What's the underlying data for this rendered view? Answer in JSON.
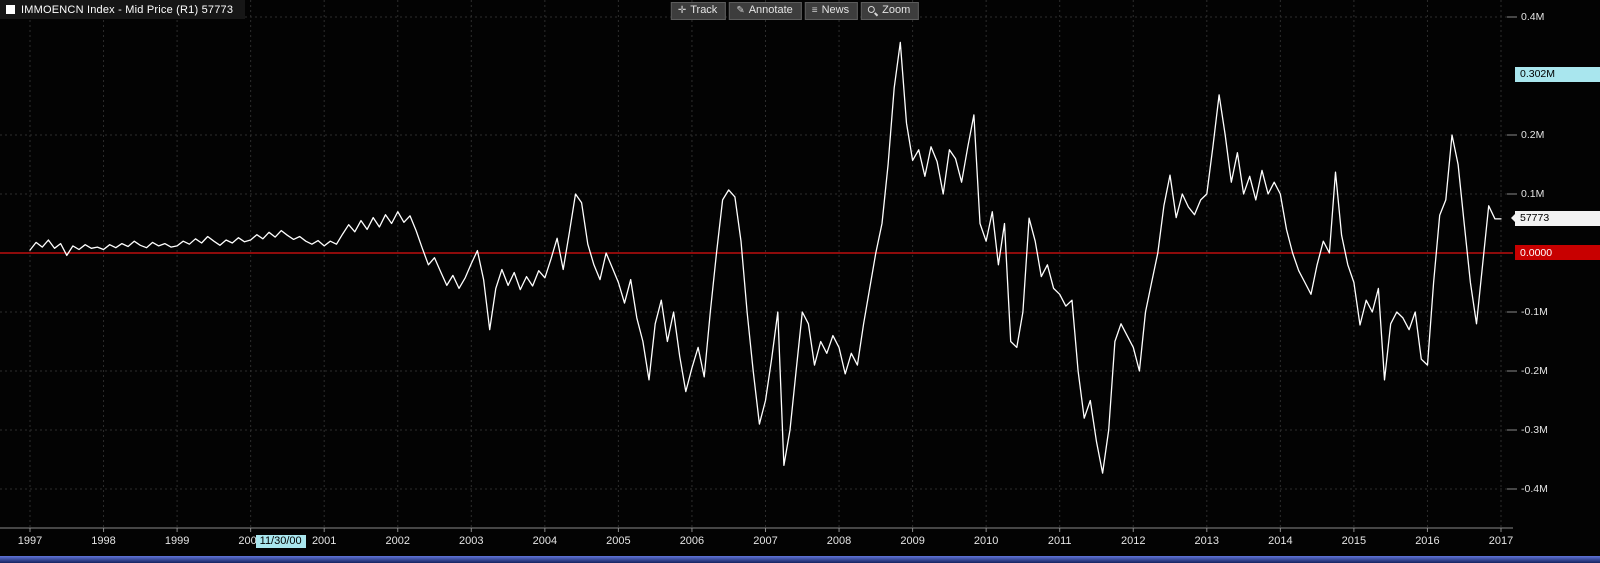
{
  "legend": {
    "text": "IMMOENCN Index - Mid Price (R1) 57773",
    "series_swatch_color": "#ffffff"
  },
  "toolbar": {
    "buttons": [
      {
        "name": "track",
        "label": "Track",
        "glyph": "✛"
      },
      {
        "name": "annotate",
        "label": "Annotate",
        "glyph": "✎"
      },
      {
        "name": "news",
        "label": "News",
        "glyph": "≡"
      },
      {
        "name": "zoom",
        "label": "Zoom",
        "glyph": ""
      }
    ]
  },
  "y_axis": {
    "labels": [
      {
        "text": "0.4M",
        "value": 0.4,
        "style": "plain"
      },
      {
        "text": "0.302M",
        "value": 0.302,
        "style": "cyan"
      },
      {
        "text": "0.2M",
        "value": 0.2,
        "style": "plain"
      },
      {
        "text": "0.1M",
        "value": 0.1,
        "style": "plain"
      },
      {
        "text": "57773",
        "value": 0.0578,
        "style": "white"
      },
      {
        "text": "0.0000",
        "value": 0.0,
        "style": "red"
      },
      {
        "text": "-0.1M",
        "value": -0.1,
        "style": "plain"
      },
      {
        "text": "-0.2M",
        "value": -0.2,
        "style": "plain"
      },
      {
        "text": "-0.3M",
        "value": -0.3,
        "style": "plain"
      },
      {
        "text": "-0.4M",
        "value": -0.4,
        "style": "plain"
      }
    ]
  },
  "x_axis": {
    "years": [
      "1997",
      "1998",
      "1999",
      "2000",
      "2001",
      "2002",
      "2003",
      "2004",
      "2005",
      "2006",
      "2007",
      "2008",
      "2009",
      "2010",
      "2011",
      "2012",
      "2013",
      "2014",
      "2015",
      "2016",
      "2017"
    ],
    "date_marker": {
      "text": "11/30/00",
      "year": 2000
    }
  },
  "colors": {
    "background": "#030303",
    "line": "#ffffff",
    "zero_line": "#e01010",
    "grid": "#2d2d2d",
    "axis": "#8a8a8a",
    "cyan_badge": "#a9e6ee",
    "white_badge": "#f2f2f2",
    "red_badge": "#c80000"
  },
  "chart_data": {
    "type": "line",
    "title": "IMMOENCN Index - Mid Price (R1)",
    "last_value_label": "57773",
    "last_value": 0.0578,
    "tracked_value_label": "0.302M",
    "x_start_year": 1997,
    "x_end_year": 2017,
    "points_per_year": 12,
    "ylim": [
      -0.45,
      0.42
    ],
    "y_unit": "M",
    "grid": true,
    "zero_reference_line": 0.0,
    "values": [
      0.005,
      0.018,
      0.01,
      0.022,
      0.008,
      0.016,
      -0.004,
      0.012,
      0.006,
      0.014,
      0.008,
      0.01,
      0.006,
      0.014,
      0.009,
      0.016,
      0.011,
      0.02,
      0.013,
      0.009,
      0.018,
      0.012,
      0.016,
      0.01,
      0.012,
      0.02,
      0.015,
      0.024,
      0.017,
      0.028,
      0.02,
      0.013,
      0.022,
      0.017,
      0.026,
      0.019,
      0.022,
      0.031,
      0.024,
      0.035,
      0.027,
      0.038,
      0.03,
      0.023,
      0.028,
      0.02,
      0.015,
      0.021,
      0.012,
      0.02,
      0.015,
      0.032,
      0.048,
      0.036,
      0.055,
      0.04,
      0.06,
      0.044,
      0.065,
      0.05,
      0.07,
      0.052,
      0.063,
      0.038,
      0.008,
      -0.02,
      -0.008,
      -0.032,
      -0.055,
      -0.038,
      -0.06,
      -0.042,
      -0.018,
      0.004,
      -0.045,
      -0.13,
      -0.06,
      -0.028,
      -0.055,
      -0.033,
      -0.062,
      -0.04,
      -0.056,
      -0.03,
      -0.042,
      -0.01,
      0.025,
      -0.028,
      0.035,
      0.1,
      0.085,
      0.015,
      -0.02,
      -0.045,
      0.0,
      -0.025,
      -0.05,
      -0.085,
      -0.045,
      -0.11,
      -0.15,
      -0.215,
      -0.12,
      -0.08,
      -0.15,
      -0.1,
      -0.175,
      -0.235,
      -0.195,
      -0.16,
      -0.21,
      -0.1,
      0.0,
      0.09,
      0.107,
      0.095,
      0.02,
      -0.1,
      -0.2,
      -0.29,
      -0.25,
      -0.18,
      -0.1,
      -0.36,
      -0.3,
      -0.2,
      -0.1,
      -0.12,
      -0.19,
      -0.15,
      -0.17,
      -0.14,
      -0.16,
      -0.205,
      -0.17,
      -0.19,
      -0.12,
      -0.06,
      0.0,
      0.05,
      0.15,
      0.28,
      0.357,
      0.22,
      0.157,
      0.175,
      0.13,
      0.18,
      0.155,
      0.1,
      0.175,
      0.16,
      0.12,
      0.18,
      0.234,
      0.05,
      0.02,
      0.07,
      -0.02,
      0.05,
      -0.15,
      -0.16,
      -0.1,
      0.059,
      0.02,
      -0.04,
      -0.02,
      -0.06,
      -0.07,
      -0.09,
      -0.08,
      -0.2,
      -0.28,
      -0.25,
      -0.32,
      -0.373,
      -0.3,
      -0.15,
      -0.12,
      -0.14,
      -0.16,
      -0.2,
      -0.1,
      -0.05,
      0.0,
      0.08,
      0.132,
      0.06,
      0.1,
      0.078,
      0.065,
      0.09,
      0.1,
      0.18,
      0.268,
      0.2,
      0.12,
      0.17,
      0.1,
      0.13,
      0.09,
      0.14,
      0.1,
      0.12,
      0.1,
      0.04,
      0.0,
      -0.03,
      -0.05,
      -0.07,
      -0.02,
      0.02,
      0.0,
      0.137,
      0.03,
      -0.02,
      -0.05,
      -0.122,
      -0.08,
      -0.1,
      -0.06,
      -0.215,
      -0.12,
      -0.1,
      -0.11,
      -0.13,
      -0.1,
      -0.18,
      -0.19,
      -0.05,
      0.064,
      0.09,
      0.2,
      0.15,
      0.05,
      -0.05,
      -0.12,
      -0.02,
      0.08,
      0.058,
      0.0578
    ]
  }
}
